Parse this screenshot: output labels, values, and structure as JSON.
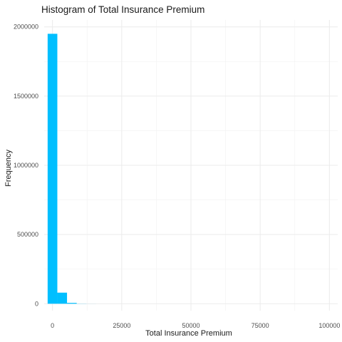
{
  "chart_data": {
    "type": "bar",
    "title": "Histogram of Total Insurance Premium",
    "xlabel": "Total Insurance Premium",
    "ylabel": "Frequency",
    "xlim": [
      -3000,
      103000
    ],
    "ylim": [
      -50000,
      2050000
    ],
    "x_ticks": [
      0,
      25000,
      50000,
      75000,
      100000
    ],
    "x_tick_labels": [
      "0",
      "25000",
      "50000",
      "75000",
      "100000"
    ],
    "y_ticks": [
      0,
      500000,
      1000000,
      1500000,
      2000000
    ],
    "y_tick_labels": [
      "0",
      "500000",
      "1000000",
      "1500000",
      "2000000"
    ],
    "bin_width": 3500,
    "bins": [
      {
        "x0": -1750,
        "x1": 1750,
        "count": 1950000
      },
      {
        "x0": 1750,
        "x1": 5250,
        "count": 80000
      },
      {
        "x0": 5250,
        "x1": 8750,
        "count": 6000
      },
      {
        "x0": 8750,
        "x1": 12250,
        "count": 800
      },
      {
        "x0": 12250,
        "x1": 15750,
        "count": 200
      }
    ],
    "bar_color": "#00BFFF",
    "grid": true,
    "legend": "none"
  }
}
